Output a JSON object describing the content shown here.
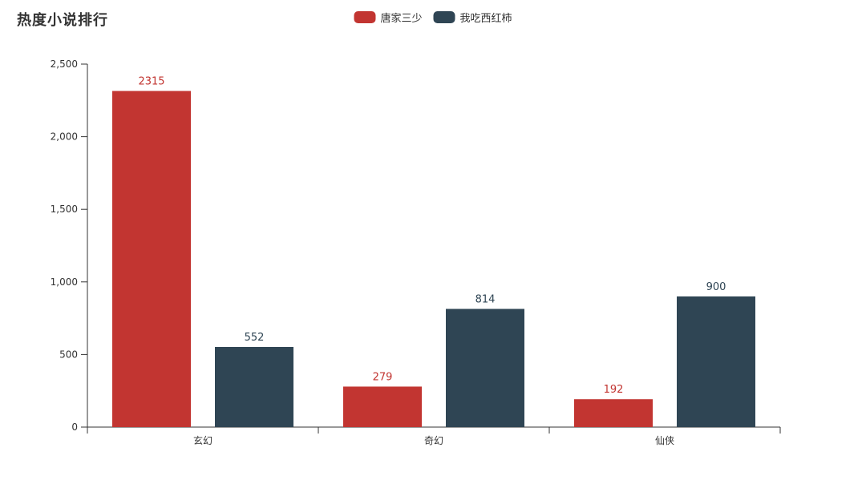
{
  "chart_data": {
    "type": "bar",
    "title": "热度小说排行",
    "categories": [
      "玄幻",
      "奇幻",
      "仙侠"
    ],
    "series": [
      {
        "name": "唐家三少",
        "color": "#c23531",
        "values": [
          2315,
          279,
          192
        ]
      },
      {
        "name": "我吃西红柿",
        "color": "#2f4554",
        "values": [
          552,
          814,
          900
        ]
      }
    ],
    "ylim": [
      0,
      2500
    ],
    "y_ticks": [
      0,
      500,
      1000,
      1500,
      2000,
      2500
    ],
    "y_tick_labels": [
      "0",
      "500",
      "1,000",
      "1,500",
      "2,000",
      "2,500"
    ],
    "xlabel": "",
    "ylabel": "",
    "grid": false,
    "legend_position": "top-center",
    "bar_labels_shown": true,
    "axis_color": "#333333",
    "background": "#ffffff"
  }
}
